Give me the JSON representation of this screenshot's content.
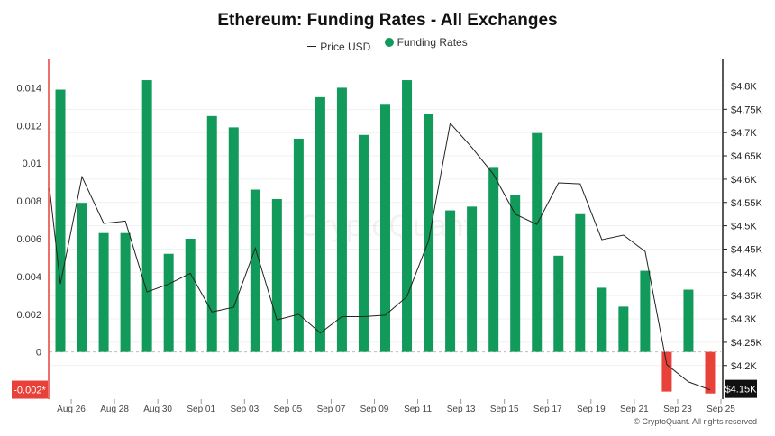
{
  "chart_data": {
    "type": "bar",
    "title": "Ethereum: Funding Rates - All Exchanges",
    "legend": [
      "Price USD",
      "Funding Rates"
    ],
    "left_axis": {
      "ticks": [
        0.014,
        0.012,
        0.01,
        0.008,
        0.006,
        0.004,
        0.002,
        0
      ],
      "tick_labels": [
        "0.014",
        "0.012",
        "0.01",
        "0.008",
        "0.006",
        "0.004",
        "0.002",
        "0"
      ],
      "ylim": [
        -0.0025,
        0.0155
      ],
      "marker_value": -0.002,
      "marker_label": "-0.002*"
    },
    "right_axis": {
      "ticks": [
        4800,
        4750,
        4700,
        4650,
        4600,
        4550,
        4500,
        4450,
        4400,
        4350,
        4300,
        4250,
        4200
      ],
      "tick_labels": [
        "$4.8K",
        "$4.75K",
        "$4.7K",
        "$4.65K",
        "$4.6K",
        "$4.55K",
        "$4.5K",
        "$4.45K",
        "$4.4K",
        "$4.35K",
        "$4.3K",
        "$4.25K",
        "$4.2K"
      ],
      "ylim": [
        4128,
        4857
      ],
      "marker_value": 4150,
      "marker_label": "$4.15K"
    },
    "x_axis": {
      "start_day": 0,
      "end_day": 31,
      "tick_days": [
        1,
        3,
        5,
        7,
        9,
        11,
        13,
        15,
        17,
        19,
        21,
        23,
        25,
        27,
        29,
        31
      ],
      "tick_labels": [
        "Aug 26",
        "Aug 28",
        "Aug 30",
        "Sep 01",
        "Sep 03",
        "Sep 05",
        "Sep 07",
        "Sep 09",
        "Sep 11",
        "Sep 13",
        "Sep 15",
        "Sep 17",
        "Sep 19",
        "Sep 21",
        "Sep 23",
        "Sep 25"
      ]
    },
    "series": [
      {
        "name": "Funding Rates",
        "kind": "bar",
        "positive_color": "#129a5a",
        "negative_color": "#e8413a",
        "days": [
          0.5,
          1.5,
          2.5,
          3.5,
          4.5,
          5.5,
          6.5,
          7.5,
          8.5,
          9.5,
          10.5,
          11.5,
          12.5,
          13.5,
          14.5,
          15.5,
          16.5,
          17.5,
          18.5,
          19.5,
          20.5,
          21.5,
          22.5,
          23.5,
          24.5,
          25.5,
          26.5,
          27.5,
          28.5,
          29.5,
          30.5
        ],
        "values": [
          0.0139,
          0.0079,
          0.0063,
          0.0063,
          0.0144,
          0.0052,
          0.006,
          0.0125,
          0.0119,
          0.0086,
          0.0081,
          0.0113,
          0.0135,
          0.014,
          0.0115,
          0.0131,
          0.0144,
          0.0126,
          0.0075,
          0.0077,
          0.0098,
          0.0083,
          0.0116,
          0.0051,
          0.0073,
          0.0034,
          0.0024,
          0.0043,
          -0.0021,
          0.0033,
          -0.0022
        ]
      },
      {
        "name": "Price USD",
        "kind": "line",
        "color": "#222222",
        "days": [
          0,
          0.5,
          1.5,
          2.5,
          3.5,
          4.5,
          5.5,
          6.5,
          7.5,
          8.5,
          9.5,
          10.5,
          11.5,
          12.5,
          13.5,
          14.5,
          15.5,
          16.5,
          17.5,
          18.5,
          19.5,
          20.5,
          21.5,
          22.5,
          23.5,
          24.5,
          25.5,
          26.5,
          27.5,
          28.5,
          29.5,
          30.5
        ],
        "values": [
          4580,
          4375,
          4605,
          4505,
          4510,
          4358,
          4375,
          4398,
          4315,
          4325,
          4452,
          4298,
          4310,
          4270,
          4305,
          4305,
          4308,
          4348,
          4468,
          4720,
          4668,
          4610,
          4525,
          4503,
          4592,
          4590,
          4470,
          4480,
          4445,
          4202,
          4165,
          4148
        ]
      }
    ],
    "watermark": "CryptoQuant",
    "footer": "© CryptoQuant. All rights reserved"
  }
}
